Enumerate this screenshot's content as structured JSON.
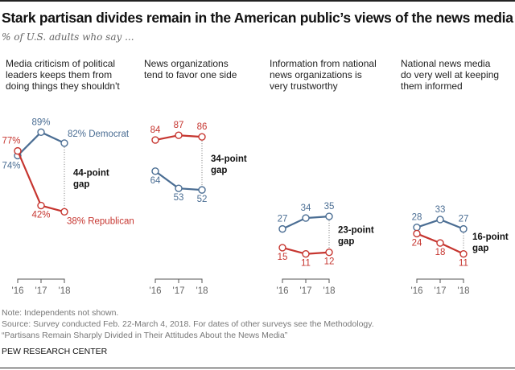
{
  "title": "Stark partisan divides remain in the American public’s views of the news media",
  "subtitle": "% of U.S. adults who say ...",
  "colors": {
    "democrat": "#4a6d93",
    "republican": "#c6352f",
    "axis": "#555555",
    "tick_label": "#666666",
    "gap": "#111111"
  },
  "chart_data": [
    {
      "type": "line",
      "title": "Media criticism of political leaders keeps them from doing things they shouldn't",
      "x": [
        "'16",
        "'17",
        "'18"
      ],
      "series": [
        {
          "name": "Democrat",
          "values": [
            74,
            89,
            82
          ],
          "labels": [
            "74%",
            "89%",
            "82% Democrat"
          ]
        },
        {
          "name": "Republican",
          "values": [
            77,
            42,
            38
          ],
          "labels": [
            "77%",
            "42%",
            "38% Republican"
          ]
        }
      ],
      "gap_label_line1": "44-point",
      "gap_label_line2": "gap",
      "ylim": [
        0,
        100
      ]
    },
    {
      "type": "line",
      "title": "News organizations tend to favor one side",
      "x": [
        "'16",
        "'17",
        "'18"
      ],
      "series": [
        {
          "name": "Democrat",
          "values": [
            64,
            53,
            52
          ],
          "labels": [
            "64",
            "53",
            "52"
          ]
        },
        {
          "name": "Republican",
          "values": [
            84,
            87,
            86
          ],
          "labels": [
            "84",
            "87",
            "86"
          ]
        }
      ],
      "gap_label_line1": "34-point",
      "gap_label_line2": "gap",
      "ylim": [
        0,
        100
      ]
    },
    {
      "type": "line",
      "title": "Information from national news organizations is very trustworthy",
      "x": [
        "'16",
        "'17",
        "'18"
      ],
      "series": [
        {
          "name": "Democrat",
          "values": [
            27,
            34,
            35
          ],
          "labels": [
            "27",
            "34",
            "35"
          ]
        },
        {
          "name": "Republican",
          "values": [
            15,
            11,
            12
          ],
          "labels": [
            "15",
            "11",
            "12"
          ]
        }
      ],
      "gap_label_line1": "23-point",
      "gap_label_line2": "gap",
      "ylim": [
        0,
        100
      ]
    },
    {
      "type": "line",
      "title": "National news media do very well at keeping them informed",
      "x": [
        "'16",
        "'17",
        "'18"
      ],
      "series": [
        {
          "name": "Democrat",
          "values": [
            28,
            33,
            27
          ],
          "labels": [
            "28",
            "33",
            "27"
          ]
        },
        {
          "name": "Republican",
          "values": [
            24,
            18,
            11
          ],
          "labels": [
            "24",
            "18",
            "11"
          ]
        }
      ],
      "gap_label_line1": "16-point",
      "gap_label_line2": "gap",
      "ylim": [
        0,
        100
      ]
    }
  ],
  "panel_titles": [
    "Media criticism of political\nleaders keeps them from\ndoing things they shouldn't",
    "News organizations\ntend to favor one side",
    "Information from national\nnews organizations is\nvery trustworthy",
    "National news media\ndo very well at keeping\nthem informed"
  ],
  "footer": {
    "note": "Note: Independents not shown.",
    "source": "Source: Survey conducted Feb. 22-March 4, 2018. For dates of other surveys see the Methodology.",
    "report": "“Partisans Remain Sharply Divided in Their Attitudes About the News Media”",
    "brand": "PEW RESEARCH CENTER"
  }
}
